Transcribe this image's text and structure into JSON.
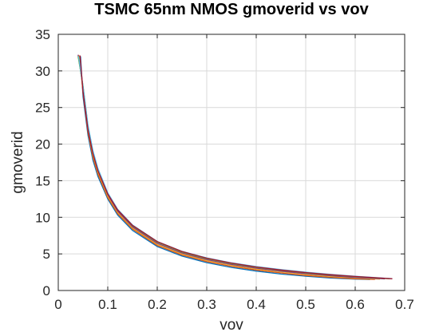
{
  "chart_data": {
    "type": "line",
    "title": "TSMC 65nm NMOS gmoverid vs vov",
    "xlabel": "vov",
    "ylabel": "gmoverid",
    "xlim": [
      0,
      0.7
    ],
    "ylim": [
      0,
      35
    ],
    "xticks": [
      "0",
      "0.1",
      "0.2",
      "0.3",
      "0.4",
      "0.5",
      "0.6",
      "0.7"
    ],
    "yticks": [
      "0",
      "5",
      "10",
      "15",
      "20",
      "25",
      "30",
      "35"
    ],
    "grid": true,
    "legend": "none",
    "series": [
      {
        "color": "#0072bd",
        "x": [
          0.045,
          0.05,
          0.06,
          0.07,
          0.08,
          0.1,
          0.12,
          0.15,
          0.2,
          0.25,
          0.3,
          0.35,
          0.4,
          0.45,
          0.5,
          0.55,
          0.6,
          0.63
        ],
        "y": [
          32.0,
          26.5,
          21.2,
          17.8,
          15.6,
          12.5,
          10.3,
          8.2,
          6.0,
          4.7,
          3.8,
          3.15,
          2.65,
          2.25,
          1.95,
          1.7,
          1.55,
          1.5
        ]
      },
      {
        "color": "#d95319",
        "x": [
          0.043,
          0.05,
          0.06,
          0.07,
          0.08,
          0.1,
          0.12,
          0.15,
          0.2,
          0.25,
          0.3,
          0.35,
          0.4,
          0.45,
          0.5,
          0.55,
          0.6,
          0.64
        ],
        "y": [
          32.1,
          27.0,
          21.6,
          18.2,
          15.9,
          12.7,
          10.5,
          8.4,
          6.15,
          4.85,
          3.95,
          3.3,
          2.8,
          2.4,
          2.05,
          1.8,
          1.6,
          1.52
        ]
      },
      {
        "color": "#edb120",
        "x": [
          0.041,
          0.05,
          0.06,
          0.07,
          0.08,
          0.1,
          0.12,
          0.15,
          0.2,
          0.25,
          0.3,
          0.35,
          0.4,
          0.45,
          0.5,
          0.55,
          0.6,
          0.65
        ],
        "y": [
          32.2,
          27.5,
          22.0,
          18.5,
          16.2,
          12.9,
          10.7,
          8.55,
          6.3,
          5.0,
          4.1,
          3.45,
          2.95,
          2.55,
          2.2,
          1.92,
          1.7,
          1.55
        ]
      },
      {
        "color": "#7e2f8e",
        "x": [
          0.04,
          0.05,
          0.06,
          0.07,
          0.08,
          0.1,
          0.12,
          0.15,
          0.2,
          0.25,
          0.3,
          0.35,
          0.4,
          0.45,
          0.5,
          0.55,
          0.6,
          0.66
        ],
        "y": [
          32.2,
          27.8,
          22.3,
          18.8,
          16.4,
          13.1,
          10.85,
          8.7,
          6.45,
          5.12,
          4.22,
          3.56,
          3.05,
          2.65,
          2.3,
          2.02,
          1.78,
          1.58
        ]
      },
      {
        "color": "#77ac30",
        "x": [
          0.04,
          0.05,
          0.06,
          0.07,
          0.08,
          0.1,
          0.12,
          0.15,
          0.2,
          0.25,
          0.3,
          0.35,
          0.4,
          0.45,
          0.5,
          0.55,
          0.6,
          0.67
        ],
        "y": [
          32.0,
          28.0,
          22.5,
          19.0,
          16.6,
          13.25,
          11.0,
          8.85,
          6.6,
          5.25,
          4.35,
          3.68,
          3.17,
          2.76,
          2.4,
          2.12,
          1.88,
          1.6
        ]
      },
      {
        "color": "#4dbeee",
        "x": [
          0.041,
          0.05,
          0.06,
          0.07,
          0.08,
          0.1,
          0.12,
          0.15,
          0.2,
          0.25,
          0.3,
          0.35,
          0.4,
          0.45,
          0.5,
          0.55,
          0.6,
          0.675
        ],
        "y": [
          32.0,
          27.9,
          22.6,
          19.1,
          16.7,
          13.35,
          11.1,
          8.95,
          6.7,
          5.35,
          4.45,
          3.78,
          3.27,
          2.86,
          2.5,
          2.2,
          1.95,
          1.62
        ]
      },
      {
        "color": "#a2142f",
        "x": [
          0.044,
          0.05,
          0.06,
          0.07,
          0.08,
          0.1,
          0.12,
          0.15,
          0.2,
          0.25,
          0.3,
          0.35,
          0.4,
          0.45,
          0.5,
          0.55,
          0.6,
          0.675
        ],
        "y": [
          32.1,
          27.2,
          22.0,
          18.7,
          16.4,
          13.2,
          11.0,
          8.9,
          6.68,
          5.33,
          4.42,
          3.75,
          3.22,
          2.8,
          2.45,
          2.16,
          1.92,
          1.6
        ]
      }
    ]
  }
}
